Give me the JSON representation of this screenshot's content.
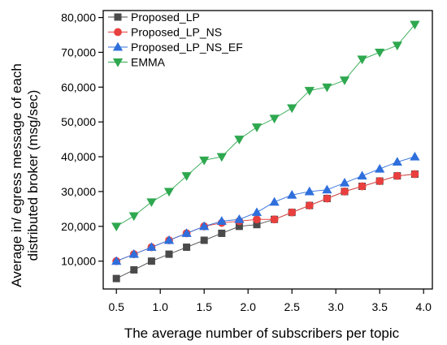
{
  "chart_data": {
    "type": "line",
    "title": "",
    "xlabel": "The average number of subscribers per topic",
    "ylabel_lines": [
      "Average in/ egress message of each",
      "distributed broker (msg/sec)"
    ],
    "xlim": [
      0.35,
      4.1
    ],
    "ylim": [
      2000,
      82000
    ],
    "xticks": [
      0.5,
      1.0,
      1.5,
      2.0,
      2.5,
      3.0,
      3.5,
      4.0
    ],
    "xtick_labels": [
      "0.5",
      "1.0",
      "1.5",
      "2.0",
      "2.5",
      "3.0",
      "3.5",
      "4.0"
    ],
    "yticks": [
      10000,
      20000,
      30000,
      40000,
      50000,
      60000,
      70000,
      80000
    ],
    "ytick_labels": [
      "10,000",
      "20,000",
      "30,000",
      "40,000",
      "50,000",
      "60,000",
      "70,000",
      "80,000"
    ],
    "grid": false,
    "legend_position": "top-left",
    "x": [
      0.5,
      0.7,
      0.9,
      1.1,
      1.3,
      1.5,
      1.7,
      1.9,
      2.1,
      2.3,
      2.5,
      2.7,
      2.9,
      3.1,
      3.3,
      3.5,
      3.7,
      3.9
    ],
    "series": [
      {
        "name": "Proposed_LP",
        "color": "#4a4a4a",
        "marker": "square",
        "values": [
          5000,
          7500,
          10000,
          12000,
          14000,
          16000,
          18000,
          20000,
          20500,
          22000,
          24000,
          26000,
          28000,
          30000,
          31500,
          33000,
          34500,
          35000
        ]
      },
      {
        "name": "Proposed_LP_NS",
        "color": "#e8403f",
        "marker": "circle",
        "values": [
          10000,
          12000,
          14000,
          16000,
          18000,
          20000,
          21000,
          21500,
          22000,
          22000,
          24000,
          26000,
          28000,
          30000,
          31500,
          33000,
          34500,
          35000
        ]
      },
      {
        "name": "Proposed_LP_NS_EF",
        "color": "#2f6fdc",
        "marker": "triangle-up",
        "values": [
          10000,
          12000,
          14000,
          16000,
          18000,
          20000,
          21500,
          22000,
          24000,
          27000,
          29000,
          30000,
          30500,
          32500,
          34500,
          36500,
          38500,
          40000
        ]
      },
      {
        "name": "EMMA",
        "color": "#2ea84f",
        "marker": "triangle-down",
        "values": [
          20000,
          23000,
          27000,
          30000,
          34500,
          39000,
          40000,
          45000,
          48500,
          51000,
          54000,
          59000,
          60000,
          62000,
          68000,
          70000,
          72000,
          78000
        ]
      }
    ]
  }
}
